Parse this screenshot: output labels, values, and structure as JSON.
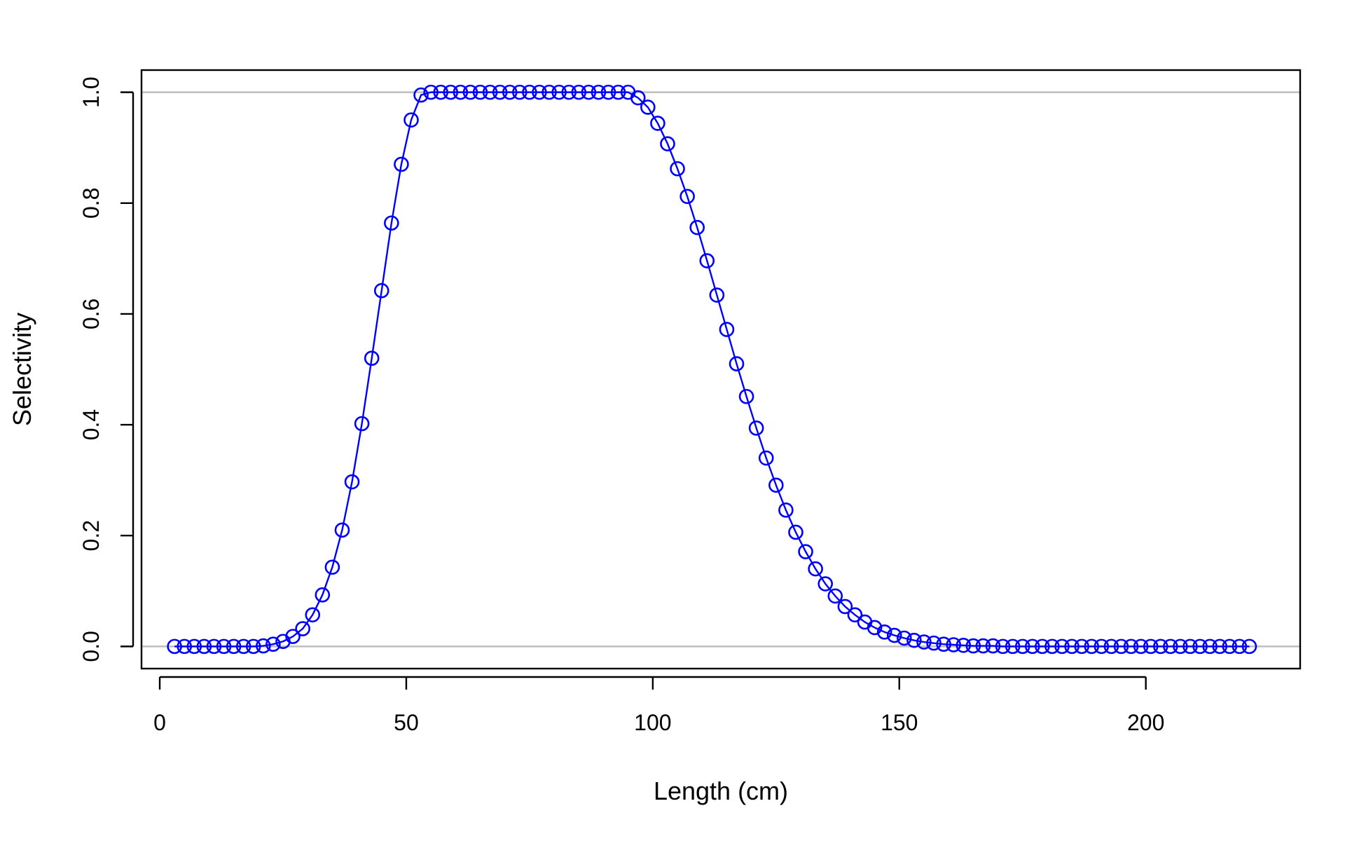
{
  "chart_data": {
    "type": "line",
    "title": "",
    "xlabel": "Length (cm)",
    "ylabel": "Selectivity",
    "xlim": [
      -3.7,
      231.3
    ],
    "ylim": [
      -0.04,
      1.04
    ],
    "x_ticks": [
      0,
      50,
      100,
      150,
      200
    ],
    "x_tick_labels": [
      "0",
      "50",
      "100",
      "150",
      "200"
    ],
    "y_ticks": [
      0.0,
      0.2,
      0.4,
      0.6,
      0.8,
      1.0
    ],
    "y_tick_labels": [
      "0.0",
      "0.2",
      "0.4",
      "0.6",
      "0.8",
      "1.0"
    ],
    "reference_lines_y": [
      0,
      1
    ],
    "grid": false,
    "legend": "none",
    "marker": "open-circle",
    "colors": {
      "series": "#0000ff",
      "reference": "#bebebe",
      "axes": "#000000"
    },
    "series": [
      {
        "x": [
          3,
          5,
          7,
          9,
          11,
          13,
          15,
          17,
          19,
          21,
          23,
          25,
          27,
          29,
          31,
          33,
          35,
          37,
          39,
          41,
          43,
          45,
          47,
          49,
          51,
          53,
          55,
          57,
          59,
          61,
          63,
          65,
          67,
          69,
          71,
          73,
          75,
          77,
          79,
          81,
          83,
          85,
          87,
          89,
          91,
          93,
          95,
          97,
          99,
          101,
          103,
          105,
          107,
          109,
          111,
          113,
          115,
          117,
          119,
          121,
          123,
          125,
          127,
          129,
          131,
          133,
          135,
          137,
          139,
          141,
          143,
          145,
          147,
          149,
          151,
          153,
          155,
          157,
          159,
          161,
          163,
          165,
          167,
          169,
          171,
          173,
          175,
          177,
          179,
          181,
          183,
          185,
          187,
          189,
          191,
          193,
          195,
          197,
          199,
          201,
          203,
          205,
          207,
          209,
          211,
          213,
          215,
          217,
          219,
          221
        ],
        "y": [
          0.0,
          0.0,
          0.0,
          0.0,
          0.0,
          0.0,
          0.0,
          0.0,
          0.0,
          0.001,
          0.004,
          0.009,
          0.018,
          0.032,
          0.057,
          0.093,
          0.143,
          0.21,
          0.297,
          0.402,
          0.52,
          0.642,
          0.764,
          0.87,
          0.95,
          0.995,
          1.0,
          1.0,
          1.0,
          1.0,
          1.0,
          1.0,
          1.0,
          1.0,
          1.0,
          1.0,
          1.0,
          1.0,
          1.0,
          1.0,
          1.0,
          1.0,
          1.0,
          1.0,
          1.0,
          1.0,
          1.0,
          0.99,
          0.973,
          0.944,
          0.907,
          0.862,
          0.812,
          0.756,
          0.696,
          0.634,
          0.572,
          0.51,
          0.451,
          0.394,
          0.34,
          0.291,
          0.246,
          0.206,
          0.171,
          0.14,
          0.113,
          0.091,
          0.072,
          0.057,
          0.044,
          0.034,
          0.026,
          0.02,
          0.015,
          0.011,
          0.008,
          0.006,
          0.004,
          0.003,
          0.002,
          0.001,
          0.001,
          0.001,
          0.0,
          0.0,
          0.0,
          0.0,
          0.0,
          0.0,
          0.0,
          0.0,
          0.0,
          0.0,
          0.0,
          0.0,
          0.0,
          0.0,
          0.0,
          0.0,
          0.0,
          0.0,
          0.0,
          0.0,
          0.0,
          0.0,
          0.0,
          0.0,
          0.0,
          0.0
        ]
      }
    ]
  }
}
